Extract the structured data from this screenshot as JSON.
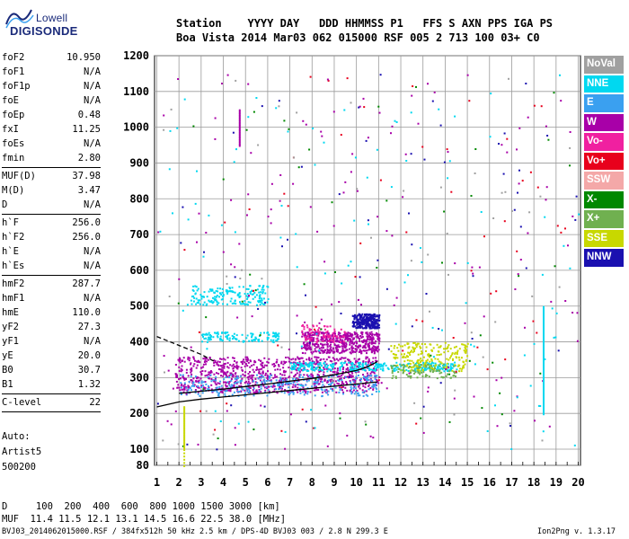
{
  "logo": {
    "top": "Lowell",
    "main": "DIGISONDE"
  },
  "header": {
    "row1": "Station    YYYY DAY   DDD HHMMSS P1   FFS S AXN PPS IGA PS",
    "row2": "Boa Vista 2014 Mar03 062 015000 RSF 005 2 713 100 03+ C0"
  },
  "params": {
    "group1": [
      {
        "name": "foF2",
        "value": "10.950"
      },
      {
        "name": "foF1",
        "value": "N/A"
      },
      {
        "name": "foF1p",
        "value": "N/A"
      },
      {
        "name": "foE",
        "value": "N/A"
      },
      {
        "name": "foEp",
        "value": "0.48"
      },
      {
        "name": "fxI",
        "value": "11.25"
      },
      {
        "name": "foEs",
        "value": "N/A"
      },
      {
        "name": "fmin",
        "value": "2.80"
      }
    ],
    "group2": [
      {
        "name": "MUF(D)",
        "value": "37.98"
      },
      {
        "name": "M(D)",
        "value": "3.47"
      },
      {
        "name": "D",
        "value": "N/A"
      }
    ],
    "group3": [
      {
        "name": "h`F",
        "value": "256.0"
      },
      {
        "name": "h`F2",
        "value": "256.0"
      },
      {
        "name": "h`E",
        "value": "N/A"
      },
      {
        "name": "h`Es",
        "value": "N/A"
      }
    ],
    "group4": [
      {
        "name": "hmF2",
        "value": "287.7"
      },
      {
        "name": "hmF1",
        "value": "N/A"
      },
      {
        "name": "hmE",
        "value": "110.0"
      },
      {
        "name": "yF2",
        "value": "27.3"
      },
      {
        "name": "yF1",
        "value": "N/A"
      },
      {
        "name": "yE",
        "value": "20.0"
      },
      {
        "name": "B0",
        "value": "30.7"
      },
      {
        "name": "B1",
        "value": "1.32"
      }
    ],
    "group5": [
      {
        "name": "C-level",
        "value": "22"
      }
    ]
  },
  "auto": {
    "line1": "Auto:",
    "line2": "Artist5",
    "line3": "500200"
  },
  "legend": [
    {
      "label": "NoVal",
      "color": "#a0a0a0"
    },
    {
      "label": "NNE",
      "color": "#00d8f0"
    },
    {
      "label": "E",
      "color": "#3aa0f0"
    },
    {
      "label": "W",
      "color": "#a800a8"
    },
    {
      "label": "Vo-",
      "color": "#f020a0"
    },
    {
      "label": "Vo+",
      "color": "#e8001c"
    },
    {
      "label": "SSW",
      "color": "#f4a8a8"
    },
    {
      "label": "X-",
      "color": "#008800"
    },
    {
      "label": "X+",
      "color": "#70b050"
    },
    {
      "label": "SSE",
      "color": "#c8d800"
    },
    {
      "label": "NNW",
      "color": "#1a10b0"
    }
  ],
  "muf_table": {
    "d_row": "D     100  200  400  600  800 1000 1500 3000 [km]",
    "muf_row": "MUF  11.4 11.5 12.1 13.1 14.5 16.6 22.5 38.0 [MHz]"
  },
  "footer": {
    "left": "BVJ03_2014062015000.RSF / 384fx512h 50 kHz 2.5 km / DPS-4D BVJ03 003 / 2.8 N 299.3 E",
    "right": "Ion2Png v. 1.3.17"
  },
  "chart_data": {
    "type": "scatter",
    "title": "",
    "xlabel": "",
    "ylabel": "",
    "xlim": [
      0.9,
      20.1
    ],
    "ylim": [
      80,
      1200
    ],
    "x_ticks": [
      1,
      2,
      3,
      4,
      5,
      6,
      7,
      8,
      9,
      10,
      11,
      12,
      13,
      14,
      15,
      16,
      17,
      18,
      19,
      20
    ],
    "y_ticks": [
      80,
      100,
      200,
      300,
      400,
      500,
      600,
      700,
      800,
      900,
      1000,
      1100,
      1200
    ],
    "grid": true,
    "traces": [
      {
        "name": "O-trace F2 (virtual height)",
        "color": "#000000",
        "x": [
          2.0,
          3.0,
          4.0,
          5.0,
          6.0,
          7.0,
          8.0,
          9.0,
          10.0,
          10.5,
          10.95
        ],
        "y": [
          256,
          262,
          268,
          275,
          282,
          290,
          298,
          308,
          320,
          330,
          345
        ]
      },
      {
        "name": "profile (true height)",
        "color": "#000000",
        "x": [
          1.0,
          2.0,
          3.0,
          4.0,
          5.0,
          6.0,
          7.0,
          8.0,
          9.0,
          10.0,
          10.95
        ],
        "y": [
          218,
          232,
          240,
          246,
          252,
          258,
          264,
          270,
          276,
          282,
          288
        ]
      },
      {
        "name": "MUF extrapolation",
        "color": "#000000",
        "dashed": true,
        "x": [
          1.0,
          2.0,
          3.0,
          3.6
        ],
        "y": [
          415,
          390,
          365,
          345
        ]
      }
    ],
    "clusters": [
      {
        "legend": "NNE",
        "x": [
          2.5,
          6.0
        ],
        "y": [
          505,
          560
        ],
        "n": 180
      },
      {
        "legend": "NNE",
        "x": [
          3.0,
          6.5
        ],
        "y": [
          400,
          430
        ],
        "n": 120
      },
      {
        "legend": "W",
        "x": [
          1.8,
          11.0
        ],
        "y": [
          260,
          360
        ],
        "n": 900
      },
      {
        "legend": "W",
        "x": [
          7.5,
          11.0
        ],
        "y": [
          370,
          430
        ],
        "n": 500
      },
      {
        "legend": "NNW",
        "x": [
          9.8,
          11.0
        ],
        "y": [
          440,
          480
        ],
        "n": 260
      },
      {
        "legend": "NNE",
        "x": [
          7.0,
          14.5
        ],
        "y": [
          320,
          345
        ],
        "n": 320
      },
      {
        "legend": "SSE",
        "x": [
          11.5,
          15.0
        ],
        "y": [
          320,
          400
        ],
        "n": 220
      },
      {
        "legend": "X+",
        "x": [
          11.5,
          14.5
        ],
        "y": [
          300,
          340
        ],
        "n": 90
      },
      {
        "legend": "E",
        "x": [
          2.0,
          11.0
        ],
        "y": [
          250,
          310
        ],
        "n": 300
      },
      {
        "legend": "Vo-",
        "x": [
          7.5,
          9.5
        ],
        "y": [
          400,
          450
        ],
        "n": 80
      },
      {
        "legend": "Vo+",
        "x": [
          2.0,
          19.5
        ],
        "y": [
          150,
          1150
        ],
        "n": 60
      },
      {
        "legend": "W",
        "x": [
          1.0,
          20.0
        ],
        "y": [
          100,
          1150
        ],
        "n": 150
      },
      {
        "legend": "NNE",
        "x": [
          1.0,
          20.0
        ],
        "y": [
          100,
          1150
        ],
        "n": 100
      },
      {
        "legend": "X-",
        "x": [
          1.0,
          20.0
        ],
        "y": [
          100,
          1150
        ],
        "n": 50
      },
      {
        "legend": "NNW",
        "x": [
          1.0,
          20.0
        ],
        "y": [
          100,
          1150
        ],
        "n": 60
      },
      {
        "legend": "NoVal",
        "x": [
          1.0,
          20.0
        ],
        "y": [
          100,
          1150
        ],
        "n": 50
      }
    ],
    "vertical_streaks": [
      {
        "legend": "W",
        "x": 4.7,
        "y": [
          950,
          1050
        ]
      },
      {
        "legend": "SSE",
        "x": 2.2,
        "y": [
          80,
          220
        ]
      },
      {
        "legend": "NNE",
        "x": 18.4,
        "y": [
          200,
          500
        ]
      }
    ]
  }
}
